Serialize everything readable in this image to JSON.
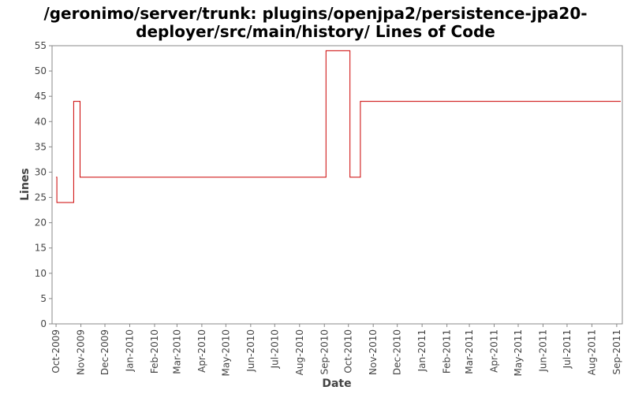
{
  "chart_data": {
    "type": "line",
    "title_lines": [
      "/geronimo/server/trunk: plugins/openjpa2/persistence-jpa20-",
      "deployer/src/main/history/ Lines of Code"
    ],
    "xlabel": "Date",
    "ylabel": "Lines",
    "ylim": [
      0,
      55
    ],
    "yticks": [
      0,
      5,
      10,
      15,
      20,
      25,
      30,
      35,
      40,
      45,
      50,
      55
    ],
    "xlim": [
      "2009-09-26",
      "2011-09-08"
    ],
    "xticks": [
      {
        "label": "Oct-2009",
        "date": "2009-10-01"
      },
      {
        "label": "Nov-2009",
        "date": "2009-11-01"
      },
      {
        "label": "Dec-2009",
        "date": "2009-12-01"
      },
      {
        "label": "Jan-2010",
        "date": "2010-01-01"
      },
      {
        "label": "Feb-2010",
        "date": "2010-02-01"
      },
      {
        "label": "Mar-2010",
        "date": "2010-03-01"
      },
      {
        "label": "Apr-2010",
        "date": "2010-04-01"
      },
      {
        "label": "May-2010",
        "date": "2010-05-01"
      },
      {
        "label": "Jun-2010",
        "date": "2010-06-01"
      },
      {
        "label": "Jul-2010",
        "date": "2010-07-01"
      },
      {
        "label": "Aug-2010",
        "date": "2010-08-01"
      },
      {
        "label": "Sep-2010",
        "date": "2010-09-01"
      },
      {
        "label": "Oct-2010",
        "date": "2010-10-01"
      },
      {
        "label": "Nov-2010",
        "date": "2010-11-01"
      },
      {
        "label": "Dec-2010",
        "date": "2010-12-01"
      },
      {
        "label": "Jan-2011",
        "date": "2011-01-01"
      },
      {
        "label": "Feb-2011",
        "date": "2011-02-01"
      },
      {
        "label": "Mar-2011",
        "date": "2011-03-01"
      },
      {
        "label": "Apr-2011",
        "date": "2011-04-01"
      },
      {
        "label": "May-2011",
        "date": "2011-05-01"
      },
      {
        "label": "Jun-2011",
        "date": "2011-06-01"
      },
      {
        "label": "Jul-2011",
        "date": "2011-07-01"
      },
      {
        "label": "Aug-2011",
        "date": "2011-08-01"
      },
      {
        "label": "Sep-2011",
        "date": "2011-09-01"
      }
    ],
    "series": [
      {
        "step": true,
        "color": "#cc0000",
        "points": [
          {
            "x": "2009-10-01",
            "y": 29
          },
          {
            "x": "2009-10-02",
            "y": 24
          },
          {
            "x": "2009-10-23",
            "y": 44
          },
          {
            "x": "2009-10-31",
            "y": 29
          },
          {
            "x": "2010-09-03",
            "y": 54
          },
          {
            "x": "2010-10-03",
            "y": 29
          },
          {
            "x": "2010-10-16",
            "y": 44
          },
          {
            "x": "2011-09-06",
            "y": 44
          }
        ]
      }
    ],
    "grid": false,
    "legend": "none"
  }
}
